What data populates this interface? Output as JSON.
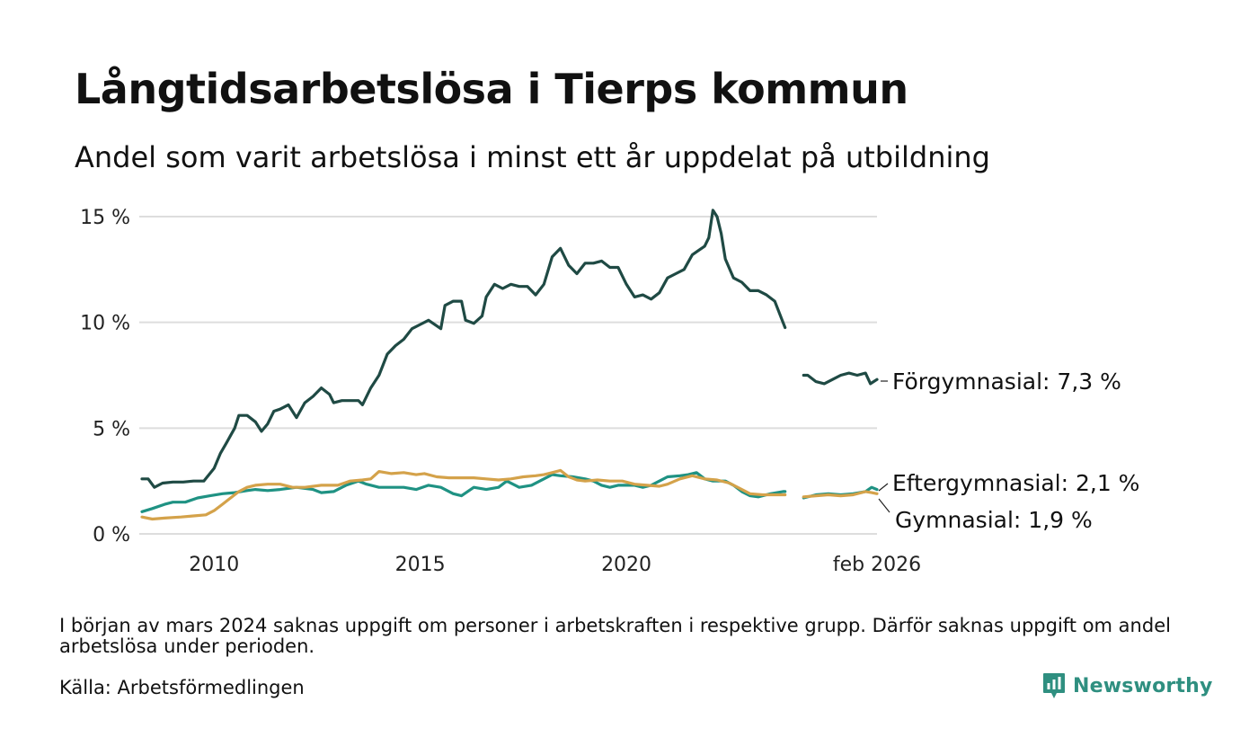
{
  "page": {
    "title": "Långtidsarbetslösa i Tierps kommun",
    "subtitle": "Andel som varit arbetslösa i minst ett år uppdelat på utbildning",
    "note": "I början av mars 2024 saknas uppgift om personer i arbetskraften i respektive grupp. Därför saknas uppgift om andel arbetslösa under perioden.",
    "source": "Källa: Arbetsförmedlingen",
    "logo_text": "Newsworthy"
  },
  "chart_data": {
    "type": "line",
    "title": "Långtidsarbetslösa i Tierps kommun",
    "xlabel": "",
    "ylabel": "",
    "ylim": [
      0,
      15
    ],
    "xlim": [
      2008.25,
      2026.08
    ],
    "y_ticks": [
      {
        "value": 0,
        "label": "0 %"
      },
      {
        "value": 5,
        "label": "5 %"
      },
      {
        "value": 10,
        "label": "10 %"
      },
      {
        "value": 15,
        "label": "15 %"
      }
    ],
    "x_ticks": [
      {
        "value": 2010,
        "label": "2010"
      },
      {
        "value": 2015,
        "label": "2015"
      },
      {
        "value": 2020,
        "label": "2020"
      },
      {
        "value": 2026.08,
        "label": "feb 2026"
      }
    ],
    "grid": true,
    "series": [
      {
        "name": "Förgymnasial",
        "end_label": "Förgymnasial: 7,3 %",
        "color": "#1f4a44",
        "segments": [
          [
            [
              2008.25,
              2.6
            ],
            [
              2008.4,
              2.6
            ],
            [
              2008.55,
              2.2
            ],
            [
              2008.75,
              2.4
            ],
            [
              2009.0,
              2.45
            ],
            [
              2009.25,
              2.45
            ],
            [
              2009.5,
              2.5
            ],
            [
              2009.75,
              2.5
            ],
            [
              2010.0,
              3.1
            ],
            [
              2010.15,
              3.8
            ],
            [
              2010.3,
              4.3
            ],
            [
              2010.5,
              5.0
            ],
            [
              2010.6,
              5.6
            ],
            [
              2010.8,
              5.6
            ],
            [
              2011.0,
              5.3
            ],
            [
              2011.15,
              4.85
            ],
            [
              2011.3,
              5.2
            ],
            [
              2011.45,
              5.8
            ],
            [
              2011.6,
              5.9
            ],
            [
              2011.8,
              6.1
            ],
            [
              2012.0,
              5.5
            ],
            [
              2012.2,
              6.2
            ],
            [
              2012.4,
              6.5
            ],
            [
              2012.6,
              6.9
            ],
            [
              2012.8,
              6.6
            ],
            [
              2012.9,
              6.2
            ],
            [
              2013.1,
              6.3
            ],
            [
              2013.3,
              6.3
            ],
            [
              2013.5,
              6.3
            ],
            [
              2013.6,
              6.1
            ],
            [
              2013.8,
              6.9
            ],
            [
              2014.0,
              7.5
            ],
            [
              2014.2,
              8.5
            ],
            [
              2014.4,
              8.9
            ],
            [
              2014.6,
              9.2
            ],
            [
              2014.8,
              9.7
            ],
            [
              2015.0,
              9.9
            ],
            [
              2015.2,
              10.1
            ],
            [
              2015.5,
              9.7
            ],
            [
              2015.6,
              10.8
            ],
            [
              2015.8,
              11.0
            ],
            [
              2016.0,
              11.0
            ],
            [
              2016.1,
              10.1
            ],
            [
              2016.3,
              9.95
            ],
            [
              2016.5,
              10.3
            ],
            [
              2016.6,
              11.2
            ],
            [
              2016.8,
              11.8
            ],
            [
              2017.0,
              11.6
            ],
            [
              2017.2,
              11.8
            ],
            [
              2017.4,
              11.7
            ],
            [
              2017.6,
              11.7
            ],
            [
              2017.8,
              11.3
            ],
            [
              2018.0,
              11.8
            ],
            [
              2018.2,
              13.1
            ],
            [
              2018.4,
              13.5
            ],
            [
              2018.6,
              12.7
            ],
            [
              2018.8,
              12.3
            ],
            [
              2019.0,
              12.8
            ],
            [
              2019.2,
              12.8
            ],
            [
              2019.4,
              12.9
            ],
            [
              2019.6,
              12.6
            ],
            [
              2019.8,
              12.6
            ],
            [
              2020.0,
              11.8
            ],
            [
              2020.2,
              11.2
            ],
            [
              2020.4,
              11.3
            ],
            [
              2020.6,
              11.1
            ],
            [
              2020.8,
              11.4
            ],
            [
              2021.0,
              12.1
            ],
            [
              2021.2,
              12.3
            ],
            [
              2021.4,
              12.5
            ],
            [
              2021.6,
              13.2
            ],
            [
              2021.75,
              13.4
            ],
            [
              2021.9,
              13.6
            ],
            [
              2022.0,
              14.0
            ],
            [
              2022.1,
              15.3
            ],
            [
              2022.2,
              15.0
            ],
            [
              2022.3,
              14.2
            ],
            [
              2022.4,
              13.0
            ],
            [
              2022.6,
              12.1
            ],
            [
              2022.8,
              11.9
            ],
            [
              2023.0,
              11.5
            ],
            [
              2023.2,
              11.5
            ],
            [
              2023.4,
              11.3
            ],
            [
              2023.6,
              11.0
            ],
            [
              2023.8,
              10.0
            ],
            [
              2023.85,
              9.75
            ]
          ],
          [
            [
              2024.3,
              7.5
            ],
            [
              2024.4,
              7.5
            ],
            [
              2024.6,
              7.2
            ],
            [
              2024.8,
              7.1
            ],
            [
              2025.0,
              7.3
            ],
            [
              2025.2,
              7.5
            ],
            [
              2025.4,
              7.6
            ],
            [
              2025.6,
              7.5
            ],
            [
              2025.8,
              7.6
            ],
            [
              2025.92,
              7.1
            ],
            [
              2026.08,
              7.3
            ]
          ]
        ]
      },
      {
        "name": "Eftergymnasial",
        "end_label": "Eftergymnasial: 2,1 %",
        "color": "#1f9283",
        "segments": [
          [
            [
              2008.25,
              1.05
            ],
            [
              2008.5,
              1.2
            ],
            [
              2008.8,
              1.4
            ],
            [
              2009.0,
              1.5
            ],
            [
              2009.3,
              1.5
            ],
            [
              2009.6,
              1.7
            ],
            [
              2009.9,
              1.8
            ],
            [
              2010.2,
              1.9
            ],
            [
              2010.5,
              1.95
            ],
            [
              2010.8,
              2.05
            ],
            [
              2011.0,
              2.1
            ],
            [
              2011.3,
              2.05
            ],
            [
              2011.6,
              2.1
            ],
            [
              2012.0,
              2.2
            ],
            [
              2012.4,
              2.1
            ],
            [
              2012.6,
              1.95
            ],
            [
              2012.9,
              2.0
            ],
            [
              2013.2,
              2.3
            ],
            [
              2013.5,
              2.5
            ],
            [
              2013.7,
              2.35
            ],
            [
              2014.0,
              2.2
            ],
            [
              2014.3,
              2.2
            ],
            [
              2014.6,
              2.2
            ],
            [
              2014.9,
              2.1
            ],
            [
              2015.2,
              2.3
            ],
            [
              2015.5,
              2.2
            ],
            [
              2015.8,
              1.9
            ],
            [
              2016.0,
              1.8
            ],
            [
              2016.3,
              2.2
            ],
            [
              2016.6,
              2.1
            ],
            [
              2016.9,
              2.2
            ],
            [
              2017.1,
              2.5
            ],
            [
              2017.4,
              2.2
            ],
            [
              2017.7,
              2.3
            ],
            [
              2017.9,
              2.5
            ],
            [
              2018.0,
              2.6
            ],
            [
              2018.2,
              2.8
            ],
            [
              2018.4,
              2.75
            ],
            [
              2018.7,
              2.7
            ],
            [
              2019.0,
              2.6
            ],
            [
              2019.2,
              2.5
            ],
            [
              2019.4,
              2.3
            ],
            [
              2019.6,
              2.2
            ],
            [
              2019.8,
              2.3
            ],
            [
              2020.0,
              2.3
            ],
            [
              2020.2,
              2.3
            ],
            [
              2020.4,
              2.2
            ],
            [
              2020.6,
              2.3
            ],
            [
              2020.8,
              2.5
            ],
            [
              2021.0,
              2.7
            ],
            [
              2021.3,
              2.75
            ],
            [
              2021.5,
              2.8
            ],
            [
              2021.7,
              2.9
            ],
            [
              2021.9,
              2.6
            ],
            [
              2022.1,
              2.5
            ],
            [
              2022.4,
              2.5
            ],
            [
              2022.6,
              2.3
            ],
            [
              2022.8,
              2.0
            ],
            [
              2023.0,
              1.8
            ],
            [
              2023.2,
              1.75
            ],
            [
              2023.5,
              1.9
            ],
            [
              2023.8,
              2.0
            ],
            [
              2023.85,
              2.0
            ]
          ],
          [
            [
              2024.3,
              1.7
            ],
            [
              2024.6,
              1.85
            ],
            [
              2024.9,
              1.9
            ],
            [
              2025.2,
              1.85
            ],
            [
              2025.5,
              1.9
            ],
            [
              2025.8,
              2.0
            ],
            [
              2025.95,
              2.2
            ],
            [
              2026.08,
              2.1
            ]
          ]
        ]
      },
      {
        "name": "Gymnasial",
        "end_label": "Gymnasial: 1,9 %",
        "color": "#d4a24a",
        "segments": [
          [
            [
              2008.25,
              0.8
            ],
            [
              2008.5,
              0.7
            ],
            [
              2008.8,
              0.75
            ],
            [
              2009.2,
              0.8
            ],
            [
              2009.5,
              0.85
            ],
            [
              2009.8,
              0.9
            ],
            [
              2010.0,
              1.1
            ],
            [
              2010.2,
              1.4
            ],
            [
              2010.4,
              1.7
            ],
            [
              2010.6,
              2.0
            ],
            [
              2010.8,
              2.2
            ],
            [
              2011.0,
              2.3
            ],
            [
              2011.3,
              2.35
            ],
            [
              2011.6,
              2.35
            ],
            [
              2011.9,
              2.2
            ],
            [
              2012.2,
              2.2
            ],
            [
              2012.6,
              2.3
            ],
            [
              2013.0,
              2.3
            ],
            [
              2013.3,
              2.5
            ],
            [
              2013.6,
              2.55
            ],
            [
              2013.8,
              2.6
            ],
            [
              2014.0,
              2.95
            ],
            [
              2014.3,
              2.85
            ],
            [
              2014.6,
              2.9
            ],
            [
              2014.9,
              2.8
            ],
            [
              2015.1,
              2.85
            ],
            [
              2015.4,
              2.7
            ],
            [
              2015.7,
              2.65
            ],
            [
              2016.0,
              2.65
            ],
            [
              2016.3,
              2.65
            ],
            [
              2016.6,
              2.6
            ],
            [
              2016.9,
              2.55
            ],
            [
              2017.2,
              2.6
            ],
            [
              2017.5,
              2.7
            ],
            [
              2017.8,
              2.75
            ],
            [
              2018.0,
              2.8
            ],
            [
              2018.2,
              2.9
            ],
            [
              2018.4,
              3.0
            ],
            [
              2018.6,
              2.7
            ],
            [
              2018.8,
              2.55
            ],
            [
              2019.0,
              2.5
            ],
            [
              2019.3,
              2.55
            ],
            [
              2019.6,
              2.5
            ],
            [
              2019.9,
              2.5
            ],
            [
              2020.2,
              2.35
            ],
            [
              2020.5,
              2.3
            ],
            [
              2020.8,
              2.25
            ],
            [
              2021.0,
              2.35
            ],
            [
              2021.3,
              2.6
            ],
            [
              2021.6,
              2.75
            ],
            [
              2021.9,
              2.6
            ],
            [
              2022.2,
              2.55
            ],
            [
              2022.5,
              2.4
            ],
            [
              2022.8,
              2.1
            ],
            [
              2023.0,
              1.9
            ],
            [
              2023.3,
              1.85
            ],
            [
              2023.6,
              1.85
            ],
            [
              2023.85,
              1.85
            ]
          ],
          [
            [
              2024.3,
              1.75
            ],
            [
              2024.6,
              1.8
            ],
            [
              2024.9,
              1.85
            ],
            [
              2025.2,
              1.8
            ],
            [
              2025.5,
              1.85
            ],
            [
              2025.8,
              2.0
            ],
            [
              2025.95,
              1.95
            ],
            [
              2026.08,
              1.9
            ]
          ]
        ]
      }
    ]
  }
}
